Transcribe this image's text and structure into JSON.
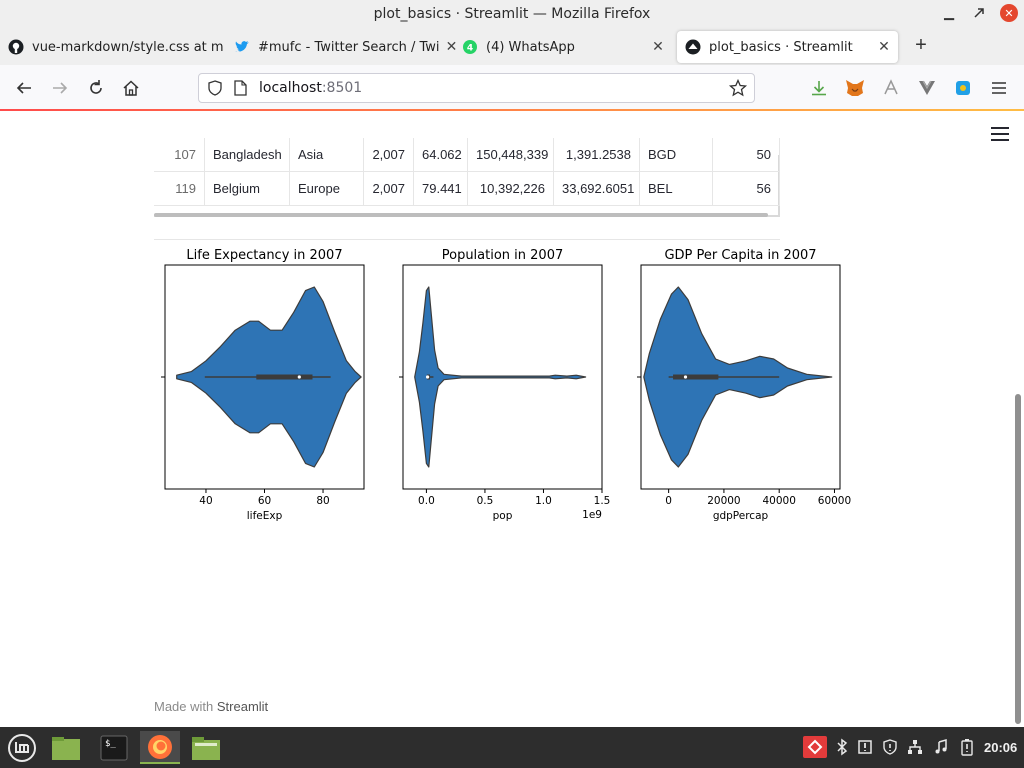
{
  "window": {
    "title": "plot_basics · Streamlit — Mozilla Firefox"
  },
  "tabs": [
    {
      "label": "vue-markdown/style.css at m",
      "icon": "github-icon"
    },
    {
      "label": "#mufc - Twitter Search / Twi",
      "icon": "twitter-icon"
    },
    {
      "label": "(4) WhatsApp",
      "icon": "whatsapp-icon"
    },
    {
      "label": "plot_basics · Streamlit",
      "icon": "streamlit-icon",
      "active": true
    }
  ],
  "address": {
    "host": "localhost",
    "port": ":8501"
  },
  "dataframe": {
    "rows": [
      {
        "index": "107",
        "country": "Bangladesh",
        "continent": "Asia",
        "year": "2,007",
        "lifeExp": "64.062",
        "pop": "150,448,339",
        "gdpPercap": "1,391.2538",
        "iso": "BGD",
        "num": "50"
      },
      {
        "index": "119",
        "country": "Belgium",
        "continent": "Europe",
        "year": "2,007",
        "lifeExp": "79.441",
        "pop": "10,392,226",
        "gdpPercap": "33,692.6051",
        "iso": "BEL",
        "num": "56"
      }
    ]
  },
  "chart_data": [
    {
      "type": "violin",
      "title": "Life Expectancy in 2007",
      "xlabel": "lifeExp",
      "xticks": [
        "40",
        "60",
        "80"
      ],
      "xlim": [
        26,
        94
      ],
      "density": [
        [
          30,
          0.02
        ],
        [
          35,
          0.06
        ],
        [
          40,
          0.18
        ],
        [
          45,
          0.34
        ],
        [
          50,
          0.52
        ],
        [
          55,
          0.62
        ],
        [
          58,
          0.62
        ],
        [
          62,
          0.52
        ],
        [
          66,
          0.52
        ],
        [
          70,
          0.72
        ],
        [
          74,
          0.96
        ],
        [
          77,
          1.0
        ],
        [
          80,
          0.84
        ],
        [
          84,
          0.5
        ],
        [
          88,
          0.18
        ],
        [
          91,
          0.06
        ],
        [
          93,
          0.0
        ]
      ],
      "box": {
        "whisker_low": 39.6,
        "q1": 57.2,
        "median": 71.9,
        "q3": 76.4,
        "whisker_high": 82.6
      },
      "color": "#2e74b5"
    },
    {
      "type": "violin",
      "title": "Population in 2007",
      "xlabel": "pop",
      "xticks": [
        "0.0",
        "0.5",
        "1.0",
        "1.5"
      ],
      "xscale_label": "1e9",
      "xlim": [
        -0.2,
        1.5
      ],
      "density": [
        [
          -0.1,
          0.0
        ],
        [
          -0.06,
          0.28
        ],
        [
          -0.03,
          0.6
        ],
        [
          0.0,
          0.96
        ],
        [
          0.02,
          1.0
        ],
        [
          0.04,
          0.72
        ],
        [
          0.07,
          0.3
        ],
        [
          0.1,
          0.1
        ],
        [
          0.15,
          0.03
        ],
        [
          0.3,
          0.01
        ],
        [
          1.05,
          0.01
        ],
        [
          1.1,
          0.02
        ],
        [
          1.2,
          0.01
        ],
        [
          1.28,
          0.02
        ],
        [
          1.36,
          0.0
        ]
      ],
      "box": {
        "whisker_low": 0.0,
        "q1": 0.004,
        "median": 0.01,
        "q3": 0.031,
        "whisker_high": 0.06
      },
      "color": "#2e74b5"
    },
    {
      "type": "violin",
      "title": "GDP Per Capita in 2007",
      "xlabel": "gdpPercap",
      "xticks": [
        "0",
        "20000",
        "40000",
        "60000"
      ],
      "xlim": [
        -10000,
        62000
      ],
      "density": [
        [
          -9000,
          0.0
        ],
        [
          -7000,
          0.26
        ],
        [
          -3000,
          0.64
        ],
        [
          1000,
          0.92
        ],
        [
          3500,
          1.0
        ],
        [
          7000,
          0.86
        ],
        [
          12000,
          0.48
        ],
        [
          17000,
          0.2
        ],
        [
          22000,
          0.14
        ],
        [
          28000,
          0.18
        ],
        [
          33000,
          0.23
        ],
        [
          38000,
          0.2
        ],
        [
          43000,
          0.1
        ],
        [
          50000,
          0.03
        ],
        [
          59000,
          0.0
        ]
      ],
      "box": {
        "whisker_low": 0,
        "q1": 1600,
        "median": 6100,
        "q3": 18000,
        "whisker_high": 40000
      },
      "color": "#2e74b5"
    }
  ],
  "footer": {
    "prefix": "Made with ",
    "brand": "Streamlit"
  },
  "taskbar": {
    "time": "20:06"
  }
}
